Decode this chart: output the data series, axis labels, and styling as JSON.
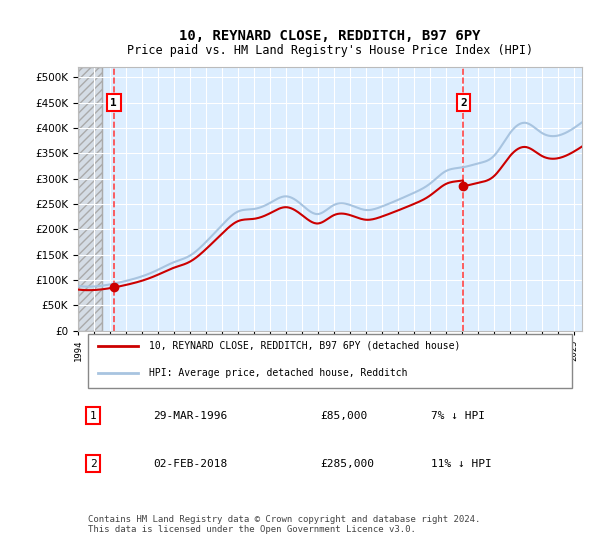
{
  "title": "10, REYNARD CLOSE, REDDITCH, B97 6PY",
  "subtitle": "Price paid vs. HM Land Registry's House Price Index (HPI)",
  "legend_line1": "10, REYNARD CLOSE, REDDITCH, B97 6PY (detached house)",
  "legend_line2": "HPI: Average price, detached house, Redditch",
  "annotation1_label": "1",
  "annotation1_date": "29-MAR-1996",
  "annotation1_price": "£85,000",
  "annotation1_hpi": "7% ↓ HPI",
  "annotation2_label": "2",
  "annotation2_date": "02-FEB-2018",
  "annotation2_price": "£285,000",
  "annotation2_hpi": "11% ↓ HPI",
  "footer": "Contains HM Land Registry data © Crown copyright and database right 2024.\nThis data is licensed under the Open Government Licence v3.0.",
  "hpi_color": "#a8c4e0",
  "price_color": "#cc0000",
  "dashed_line_color": "#ff4444",
  "background_plot": "#ddeeff",
  "background_hatch": "#e8e8e8",
  "ylim": [
    0,
    520000
  ],
  "xlim_start": 1994.0,
  "xlim_end": 2025.5
}
